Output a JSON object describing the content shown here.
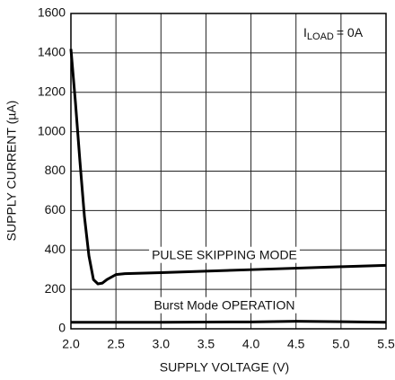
{
  "chart_data": {
    "type": "line",
    "xlabel": "SUPPLY VOLTAGE (V)",
    "ylabel": "SUPPLY CURRENT (µA)",
    "annotation": {
      "main": "I",
      "subscript": "LOAD",
      "suffix": "= 0A"
    },
    "series": [
      {
        "name": "PULSE SKIPPING MODE",
        "color": "#000000",
        "x": [
          2.0,
          2.05,
          2.1,
          2.15,
          2.2,
          2.25,
          2.3,
          2.35,
          2.4,
          2.5,
          2.6,
          3.0,
          4.0,
          5.0,
          5.5
        ],
        "values": [
          1420,
          1150,
          850,
          570,
          370,
          250,
          228,
          232,
          250,
          275,
          280,
          285,
          300,
          315,
          322
        ]
      },
      {
        "name": "Burst Mode OPERATION",
        "color": "#000000",
        "x": [
          2.0,
          3.0,
          4.0,
          4.5,
          5.0,
          5.5
        ],
        "values": [
          33,
          33,
          35,
          38,
          36,
          33
        ]
      }
    ],
    "xlim": [
      2.0,
      5.5
    ],
    "xticks": [
      {
        "value": 2,
        "label": "2.0"
      },
      2.5,
      {
        "value": 3,
        "label": "3.0"
      },
      3.5,
      {
        "value": 4,
        "label": "4.0"
      },
      4.5,
      {
        "value": 5,
        "label": "5.0"
      },
      5.5
    ],
    "ylim": [
      0,
      1600
    ],
    "yticks": [
      0,
      200,
      400,
      600,
      800,
      1000,
      1200,
      1400,
      1600
    ],
    "grid": true
  }
}
